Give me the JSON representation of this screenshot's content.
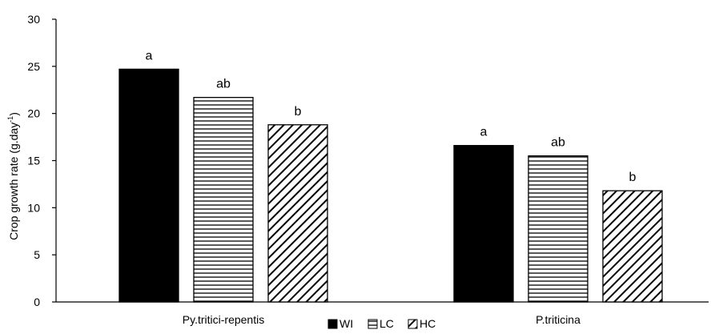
{
  "chart_data": {
    "type": "bar",
    "title": "",
    "xlabel": "",
    "ylabel": "Crop growth rate (g.day",
    "ylabel_superscript": "-1",
    "ylabel_suffix": ")",
    "ylim": [
      0,
      30
    ],
    "yticks": [
      0,
      5,
      10,
      15,
      20,
      25,
      30
    ],
    "categories": [
      "Py.tritici-repentis",
      "P.triticina"
    ],
    "series": [
      {
        "name": "WI",
        "fill": "solid",
        "values": [
          24.7,
          16.6
        ],
        "labels": [
          "a",
          "a"
        ]
      },
      {
        "name": "LC",
        "fill": "horizontal-lines",
        "values": [
          21.7,
          15.5
        ],
        "labels": [
          "ab",
          "ab"
        ]
      },
      {
        "name": "HC",
        "fill": "diagonal-lines",
        "values": [
          18.8,
          11.8
        ],
        "labels": [
          "b",
          "b"
        ]
      }
    ],
    "legend_position": "bottom-center",
    "grid": false,
    "colors": {
      "bar": "#000000",
      "background": "#ffffff",
      "axis": "#000000"
    }
  }
}
